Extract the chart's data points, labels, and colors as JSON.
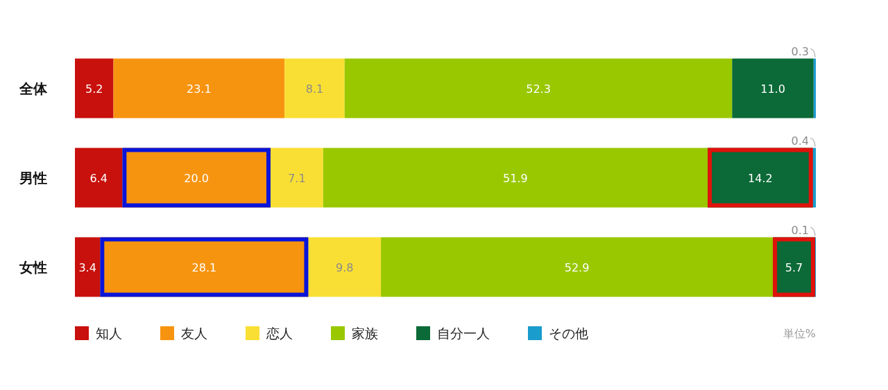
{
  "chart_data": {
    "type": "bar",
    "orientation": "horizontal",
    "stacked": true,
    "legend": "bottom left",
    "tick_labels": "y",
    "xlim": [
      0,
      100
    ],
    "categories": [
      "全体",
      "男性",
      "女性"
    ],
    "series": [
      {
        "name": "知人",
        "color": "#c8100c",
        "values": [
          5.2,
          6.4,
          3.4
        ],
        "value_labels": [
          "5.2",
          "6.4",
          "3.4"
        ]
      },
      {
        "name": "友人",
        "color": "#f7940f",
        "values": [
          23.1,
          20.0,
          28.1
        ],
        "value_labels": [
          "23.1",
          "20.0",
          "28.1"
        ]
      },
      {
        "name": "恋人",
        "color": "#f9df33",
        "values": [
          8.1,
          7.1,
          9.8
        ],
        "value_labels": [
          "8.1",
          "7.1",
          "9.8"
        ]
      },
      {
        "name": "家族",
        "color": "#99c800",
        "values": [
          52.3,
          51.9,
          52.9
        ],
        "value_labels": [
          "52.3",
          "51.9",
          "52.9"
        ]
      },
      {
        "name": "自分一人",
        "color": "#0b6a37",
        "values": [
          11.0,
          14.2,
          5.7
        ],
        "value_labels": [
          "11.0",
          "14.2",
          "5.7"
        ]
      },
      {
        "name": "その他",
        "color": "#1a9ccc",
        "values": [
          0.3,
          0.4,
          0.1
        ],
        "value_labels": [
          "0.3",
          "0.4",
          "0.1"
        ]
      }
    ],
    "annotations": [
      "単位%"
    ]
  }
}
